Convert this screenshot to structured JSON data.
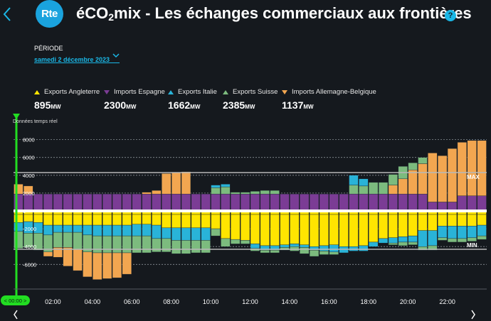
{
  "header": {
    "title_pre": "éCO",
    "title_sub": "2",
    "title_post": "mix - Les échanges commerciaux aux frontières",
    "logo_text": "Rte",
    "help": "?"
  },
  "period": {
    "label": "PÉRIODE",
    "value": "samedi 2 décembre 2023"
  },
  "legend": [
    {
      "label": "Exports Angleterre",
      "value": "895",
      "unit": "MW",
      "color": "#ffe500",
      "marker": "up"
    },
    {
      "label": "Imports Espagne",
      "value": "2300",
      "unit": "MW",
      "color": "#7b3c95",
      "marker": "down"
    },
    {
      "label": "Exports Italie",
      "value": "1662",
      "unit": "MW",
      "color": "#29b3d8",
      "marker": "up"
    },
    {
      "label": "Exports Suisse",
      "value": "2385",
      "unit": "MW",
      "color": "#7cbb7e",
      "marker": "up"
    },
    {
      "label": "Imports Allemagne-Belgique",
      "value": "1137",
      "unit": "MW",
      "color": "#f2a650",
      "marker": "down"
    }
  ],
  "cursor": {
    "label": "< 00:00 >"
  },
  "chart_data": {
    "type": "bar",
    "stacked": true,
    "realtime_label": "Données temps réel",
    "ylim": [
      -8000,
      9000
    ],
    "yticks": [
      8000,
      6000,
      4000,
      2000,
      0,
      -2000,
      -4000,
      -6000
    ],
    "yticklabels": [
      "8000",
      "6000",
      "4000",
      "2000",
      "0",
      "-2000",
      "-4000",
      "-6000"
    ],
    "xticks": [
      2,
      4,
      6,
      8,
      10,
      12,
      14,
      16,
      18,
      20,
      22
    ],
    "xticklabels": [
      "02:00",
      "04:00",
      "06:00",
      "08:00",
      "10:00",
      "12:00",
      "14:00",
      "16:00",
      "18:00",
      "20:00",
      "22:00"
    ],
    "max_line": 4300,
    "min_line": -4300,
    "max_label": "MAX",
    "min_label": "MIN",
    "bar_width_hours": 0.5,
    "x": [
      0,
      0.5,
      1,
      1.5,
      2,
      2.5,
      3,
      3.5,
      4,
      4.5,
      5,
      5.5,
      6,
      6.5,
      7,
      7.5,
      8,
      8.5,
      9,
      9.5,
      10,
      10.5,
      11,
      11.5,
      12,
      12.5,
      13,
      13.5,
      14,
      14.5,
      15,
      15.5,
      16,
      16.5,
      17,
      17.5,
      18,
      18.5,
      19,
      19.5,
      20,
      20.5,
      21,
      21.5,
      22,
      22.5,
      23,
      23.5
    ],
    "series": [
      {
        "name": "Imports Espagne",
        "color": "#7b3c95",
        "values": [
          1900,
          1900,
          1900,
          1900,
          1900,
          1900,
          1900,
          1900,
          1900,
          1900,
          1900,
          1900,
          1900,
          1900,
          1900,
          1900,
          1900,
          1900,
          1900,
          1900,
          1900,
          1900,
          1900,
          1900,
          1900,
          1900,
          1900,
          1900,
          1900,
          1900,
          1900,
          1900,
          1900,
          1900,
          1900,
          1900,
          1900,
          1900,
          1900,
          1900,
          1900,
          1900,
          1000,
          1000,
          1000,
          1700,
          1700,
          1700
        ]
      },
      {
        "name": "Imports Allemagne-Belgique",
        "color": "#f2a650",
        "values": [
          1100,
          900,
          0,
          0,
          0,
          0,
          0,
          0,
          0,
          0,
          0,
          0,
          0,
          200,
          400,
          2300,
          2400,
          2500,
          0,
          0,
          0,
          0,
          0,
          0,
          0,
          0,
          0,
          0,
          0,
          0,
          0,
          0,
          0,
          0,
          0,
          0,
          0,
          0,
          1000,
          1700,
          2700,
          3400,
          5500,
          5200,
          6000,
          6000,
          6200,
          6200
        ]
      },
      {
        "name": "Exports Suisse",
        "color": "#7cbb7e",
        "values": [
          0,
          0,
          0,
          0,
          0,
          0,
          0,
          0,
          0,
          0,
          0,
          0,
          0,
          0,
          0,
          0,
          0,
          0,
          0,
          0,
          700,
          800,
          200,
          200,
          300,
          400,
          400,
          0,
          0,
          0,
          0,
          0,
          0,
          0,
          1000,
          900,
          1300,
          1300,
          1200,
          1400,
          800,
          700,
          0,
          0,
          0,
          0,
          0,
          0
        ]
      },
      {
        "name": "Exports Italie",
        "color": "#29b3d8",
        "values": [
          0,
          0,
          0,
          0,
          0,
          0,
          0,
          0,
          0,
          0,
          0,
          0,
          0,
          0,
          0,
          0,
          0,
          0,
          0,
          0,
          300,
          300,
          0,
          0,
          0,
          0,
          0,
          0,
          0,
          0,
          0,
          0,
          0,
          0,
          1100,
          800,
          0,
          0,
          0,
          0,
          0,
          0,
          0,
          0,
          0,
          0,
          0,
          0
        ]
      },
      {
        "name": "Exports Angleterre",
        "color": "#ffe500",
        "values": [
          -400,
          -400,
          -400,
          -400,
          -400,
          -400,
          -400,
          -400,
          -400,
          -400,
          -400,
          -400,
          -400,
          -400,
          -400,
          -400,
          -400,
          -400,
          -400,
          -400,
          -400,
          -400,
          -400,
          -400,
          -400,
          -400,
          -400,
          -400,
          -400,
          -400,
          -400,
          -400,
          -400,
          -400,
          -400,
          -400,
          -400,
          -400,
          -400,
          -400,
          -400,
          -400,
          -400,
          -400,
          -400,
          -400,
          -400,
          -400
        ]
      },
      {
        "name": "Exports Angleterre (flux)",
        "color": "#ffe500",
        "values": [
          -900,
          -800,
          -900,
          -1200,
          -1200,
          -1200,
          -1200,
          -1200,
          -1200,
          -1200,
          -1200,
          -1200,
          -1100,
          -1100,
          -1200,
          -1500,
          -1500,
          -1500,
          -1500,
          -1500,
          -1600,
          -2700,
          -2800,
          -2900,
          -3300,
          -3500,
          -3500,
          -3400,
          -3300,
          -3400,
          -3600,
          -3500,
          -3400,
          -3600,
          -3600,
          -3500,
          -3100,
          -2700,
          -2600,
          -2500,
          -2400,
          -1800,
          -1800,
          -1300,
          -1300,
          -1300,
          -1300,
          -1200
        ]
      },
      {
        "name": "Exports Italie (neg)",
        "color": "#29b3d8",
        "values": [
          -1000,
          -1300,
          -1200,
          -1100,
          -800,
          -800,
          -800,
          -1100,
          -1200,
          -1200,
          -1200,
          -1200,
          -1300,
          -1300,
          -1500,
          -1200,
          -1400,
          -1400,
          -1400,
          -1400,
          0,
          0,
          0,
          0,
          -500,
          -500,
          -500,
          -300,
          -300,
          -300,
          -400,
          -600,
          -800,
          -700,
          -500,
          -600,
          -500,
          -500,
          -600,
          -600,
          -700,
          -1800,
          -1700,
          -1300,
          -1400,
          -1400,
          -1300,
          -1200
        ]
      },
      {
        "name": "Exports Suisse (neg)",
        "color": "#7cbb7e",
        "values": [
          -1900,
          -1600,
          -1900,
          -1900,
          -1700,
          -1700,
          -1900,
          -1900,
          -1900,
          -1900,
          -1900,
          -1900,
          -1900,
          -1900,
          -1500,
          -1500,
          -1500,
          -1500,
          -1400,
          -1400,
          -800,
          -900,
          -500,
          -400,
          -300,
          -300,
          -300,
          -300,
          -500,
          -700,
          -700,
          -400,
          -300,
          0,
          0,
          0,
          0,
          0,
          -200,
          -400,
          -300,
          -400,
          -500,
          -300,
          -400,
          -400,
          -400,
          -400
        ]
      },
      {
        "name": "Imports Allemagne-Belgique (neg)",
        "color": "#f2a650",
        "values": [
          0,
          0,
          0,
          -500,
          -1100,
          -2100,
          -2400,
          -2800,
          -3000,
          -2900,
          -2800,
          -2400,
          0,
          0,
          0,
          0,
          0,
          0,
          0,
          0,
          0,
          0,
          0,
          0,
          0,
          0,
          0,
          0,
          0,
          0,
          0,
          0,
          0,
          0,
          0,
          0,
          0,
          0,
          0,
          0,
          0,
          0,
          0,
          0,
          0,
          0,
          0,
          0
        ]
      }
    ]
  }
}
